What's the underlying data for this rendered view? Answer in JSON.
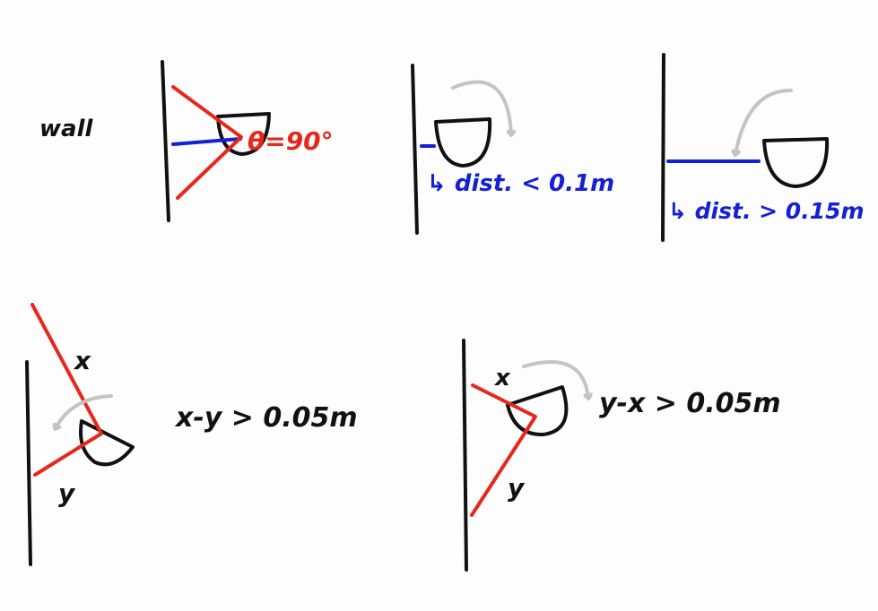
{
  "labels": {
    "wall": "wall",
    "theta": "θ=90°",
    "dist_small": "↳ dist. < 0.1m",
    "dist_large": "↳ dist. > 0.15m",
    "x_left": "x",
    "y_left": "y",
    "eq_left": "x-y > 0.05m",
    "x_right": "x",
    "y_right": "y",
    "eq_right": "y-x > 0.05m"
  },
  "colors": {
    "ink": "#111111",
    "red": "#e8261b",
    "blue": "#1420d8",
    "gray": "#c4c4c4"
  }
}
